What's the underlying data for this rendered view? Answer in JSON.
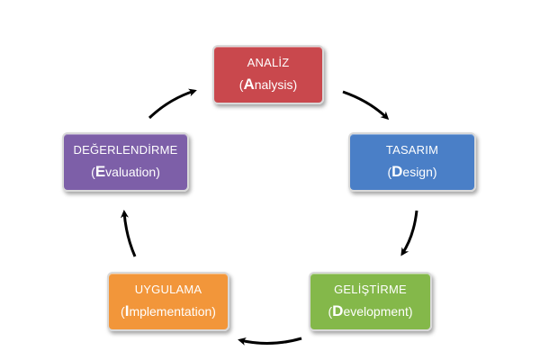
{
  "colors": {
    "analiz": "#c9484d",
    "tasarim": "#4a7fc7",
    "gelistirme": "#84b84a",
    "uygulama": "#f2963a",
    "degerlendirme": "#7d5fa8",
    "arrow": "#000000"
  },
  "phases": {
    "analiz": {
      "title": "ANALİZ",
      "open": "(",
      "initial": "A",
      "rest": "nalysis)"
    },
    "tasarim": {
      "title": "TASARIM",
      "open": "(",
      "initial": "D",
      "rest": "esign)"
    },
    "gelistirme": {
      "title": "GELİŞTİRME",
      "open": "(",
      "initial": "D",
      "rest": "evelopment)"
    },
    "uygulama": {
      "title": "UYGULAMA",
      "open": "(",
      "initial": "I",
      "rest": "mplementation)"
    },
    "degerlendirme": {
      "title": "DEĞERLENDİRME",
      "open": "(",
      "initial": "E",
      "rest": "valuation)"
    }
  }
}
